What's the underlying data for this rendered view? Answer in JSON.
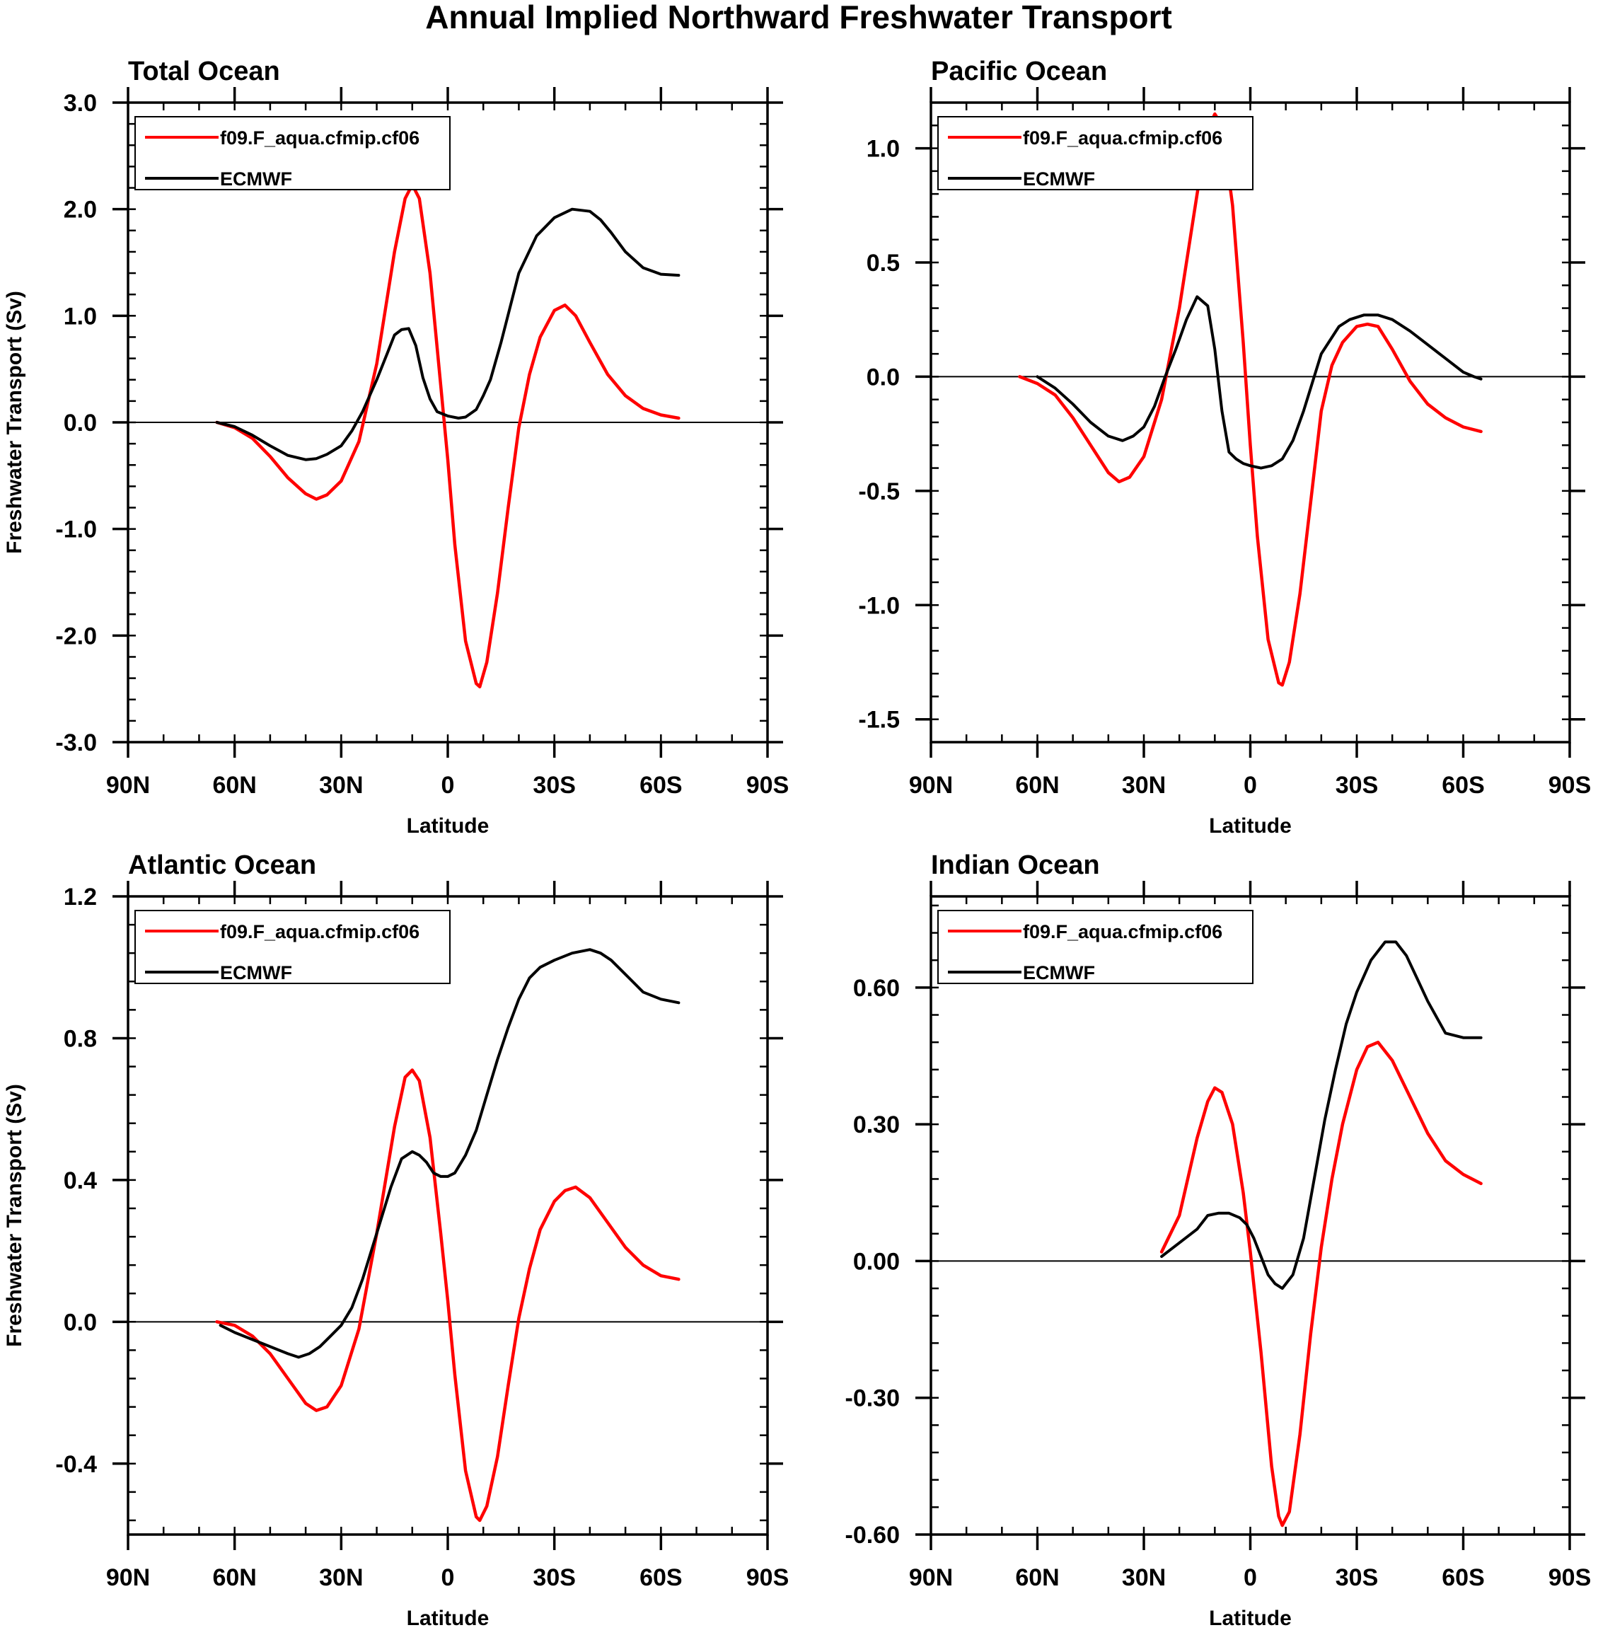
{
  "title": "Annual Implied Northward Freshwater Transport",
  "colors": {
    "model": "#ff0000",
    "obs": "#000000",
    "frame": "#000000",
    "background": "#ffffff"
  },
  "chart_data": [
    {
      "type": "line",
      "panel": "Total Ocean",
      "title": "Total Ocean",
      "xlabel": "Latitude",
      "ylabel": "Freshwater Transport (Sv)",
      "xlim": [
        -90,
        90
      ],
      "x_ticks": [
        -90,
        -60,
        -30,
        0,
        30,
        60,
        90
      ],
      "x_tick_labels": [
        "90N",
        "60N",
        "30N",
        "0",
        "30S",
        "60S",
        "90S"
      ],
      "ylim": [
        -3.0,
        3.0
      ],
      "y_ticks": [
        -3.0,
        -2.0,
        -1.0,
        0.0,
        1.0,
        2.0,
        3.0
      ],
      "y_tick_labels": [
        "-3.0",
        "-2.0",
        "-1.0",
        "0.0",
        "1.0",
        "2.0",
        "3.0"
      ],
      "y_minor_step": 0.2,
      "legend_position": "top-left",
      "series": [
        {
          "name": "f09.F_aqua.cfmip.cf06",
          "color_key": "model",
          "x": [
            -65,
            -60,
            -55,
            -50,
            -45,
            -40,
            -37,
            -34,
            -30,
            -25,
            -20,
            -15,
            -12,
            -10,
            -8,
            -5,
            -2,
            0,
            2,
            5,
            8,
            9,
            11,
            14,
            17,
            20,
            23,
            26,
            30,
            33,
            36,
            40,
            45,
            50,
            55,
            60,
            65
          ],
          "y": [
            0,
            -0.05,
            -0.15,
            -0.32,
            -0.52,
            -0.67,
            -0.72,
            -0.68,
            -0.55,
            -0.18,
            0.55,
            1.6,
            2.1,
            2.23,
            2.1,
            1.4,
            0.35,
            -0.35,
            -1.15,
            -2.05,
            -2.45,
            -2.48,
            -2.25,
            -1.6,
            -0.8,
            -0.05,
            0.45,
            0.8,
            1.05,
            1.1,
            1.0,
            0.75,
            0.45,
            0.25,
            0.13,
            0.07,
            0.04
          ]
        },
        {
          "name": "ECMWF",
          "color_key": "obs",
          "x": [
            -65,
            -60,
            -55,
            -50,
            -45,
            -40,
            -37,
            -34,
            -30,
            -27,
            -24,
            -20,
            -17,
            -15,
            -13,
            -11,
            -9,
            -7,
            -5,
            -3,
            0,
            3,
            5,
            8,
            10,
            12,
            15,
            20,
            25,
            30,
            35,
            40,
            43,
            46,
            50,
            55,
            60,
            65
          ],
          "y": [
            0,
            -0.04,
            -0.12,
            -0.22,
            -0.31,
            -0.35,
            -0.34,
            -0.3,
            -0.22,
            -0.08,
            0.1,
            0.4,
            0.65,
            0.82,
            0.87,
            0.88,
            0.72,
            0.42,
            0.22,
            0.1,
            0.06,
            0.04,
            0.05,
            0.12,
            0.25,
            0.4,
            0.75,
            1.4,
            1.75,
            1.92,
            2.0,
            1.98,
            1.9,
            1.78,
            1.6,
            1.45,
            1.39,
            1.38
          ]
        }
      ]
    },
    {
      "type": "line",
      "panel": "Pacific Ocean",
      "title": "Pacific Ocean",
      "xlabel": "Latitude",
      "ylabel": "",
      "xlim": [
        -90,
        90
      ],
      "x_ticks": [
        -90,
        -60,
        -30,
        0,
        30,
        60,
        90
      ],
      "x_tick_labels": [
        "90N",
        "60N",
        "30N",
        "0",
        "30S",
        "60S",
        "90S"
      ],
      "ylim": [
        -1.6,
        1.2
      ],
      "y_ticks": [
        -1.5,
        -1.0,
        -0.5,
        0.0,
        0.5,
        1.0
      ],
      "y_tick_labels": [
        "-1.5",
        "-1.0",
        "-0.5",
        "0.0",
        "0.5",
        "1.0"
      ],
      "y_minor_step": 0.1,
      "legend_position": "top-left",
      "series": [
        {
          "name": "f09.F_aqua.cfmip.cf06",
          "color_key": "model",
          "x": [
            -65,
            -60,
            -55,
            -50,
            -45,
            -40,
            -37,
            -34,
            -30,
            -25,
            -20,
            -15,
            -12,
            -10,
            -8,
            -5,
            -2,
            0,
            2,
            5,
            8,
            9,
            11,
            14,
            17,
            20,
            23,
            26,
            30,
            33,
            36,
            40,
            45,
            50,
            55,
            60,
            65
          ],
          "y": [
            0,
            -0.03,
            -0.08,
            -0.18,
            -0.3,
            -0.42,
            -0.46,
            -0.44,
            -0.35,
            -0.1,
            0.3,
            0.8,
            1.08,
            1.15,
            1.1,
            0.75,
            0.15,
            -0.3,
            -0.7,
            -1.15,
            -1.34,
            -1.35,
            -1.25,
            -0.95,
            -0.55,
            -0.15,
            0.05,
            0.15,
            0.22,
            0.23,
            0.22,
            0.12,
            -0.02,
            -0.12,
            -0.18,
            -0.22,
            -0.24
          ]
        },
        {
          "name": "ECMWF",
          "color_key": "obs",
          "x": [
            -60,
            -55,
            -50,
            -45,
            -40,
            -36,
            -33,
            -30,
            -27,
            -24,
            -21,
            -18,
            -15,
            -12,
            -10,
            -8,
            -6,
            -4,
            -2,
            0,
            3,
            6,
            9,
            12,
            15,
            20,
            25,
            28,
            32,
            36,
            40,
            45,
            50,
            55,
            60,
            63,
            65
          ],
          "y": [
            0,
            -0.05,
            -0.12,
            -0.2,
            -0.26,
            -0.28,
            -0.26,
            -0.22,
            -0.13,
            0.0,
            0.12,
            0.25,
            0.35,
            0.31,
            0.12,
            -0.15,
            -0.33,
            -0.36,
            -0.38,
            -0.39,
            -0.4,
            -0.39,
            -0.36,
            -0.28,
            -0.15,
            0.1,
            0.22,
            0.25,
            0.27,
            0.27,
            0.25,
            0.2,
            0.14,
            0.08,
            0.02,
            0.0,
            -0.01
          ]
        }
      ]
    },
    {
      "type": "line",
      "panel": "Atlantic Ocean",
      "title": "Atlantic Ocean",
      "xlabel": "Latitude",
      "ylabel": "Freshwater Transport (Sv)",
      "xlim": [
        -90,
        90
      ],
      "x_ticks": [
        -90,
        -60,
        -30,
        0,
        30,
        60,
        90
      ],
      "x_tick_labels": [
        "90N",
        "60N",
        "30N",
        "0",
        "30S",
        "60S",
        "90S"
      ],
      "ylim": [
        -0.6,
        1.2
      ],
      "y_ticks": [
        -0.4,
        0.0,
        0.4,
        0.8,
        1.2
      ],
      "y_tick_labels": [
        "-0.4",
        "0.0",
        "0.4",
        "0.8",
        "1.2"
      ],
      "y_minor_step": 0.08,
      "legend_position": "top-left",
      "series": [
        {
          "name": "f09.F_aqua.cfmip.cf06",
          "color_key": "model",
          "x": [
            -65,
            -60,
            -55,
            -50,
            -45,
            -40,
            -37,
            -34,
            -30,
            -25,
            -20,
            -15,
            -12,
            -10,
            -8,
            -5,
            -2,
            0,
            2,
            5,
            8,
            9,
            11,
            14,
            17,
            20,
            23,
            26,
            30,
            33,
            36,
            40,
            45,
            50,
            55,
            60,
            65
          ],
          "y": [
            0,
            -0.01,
            -0.04,
            -0.09,
            -0.16,
            -0.23,
            -0.25,
            -0.24,
            -0.18,
            -0.02,
            0.25,
            0.55,
            0.69,
            0.71,
            0.68,
            0.52,
            0.25,
            0.06,
            -0.15,
            -0.42,
            -0.55,
            -0.56,
            -0.52,
            -0.38,
            -0.18,
            0.01,
            0.15,
            0.26,
            0.34,
            0.37,
            0.38,
            0.35,
            0.28,
            0.21,
            0.16,
            0.13,
            0.12
          ]
        },
        {
          "name": "ECMWF",
          "color_key": "obs",
          "x": [
            -64,
            -60,
            -55,
            -50,
            -45,
            -42,
            -39,
            -36,
            -33,
            -30,
            -27,
            -24,
            -20,
            -16,
            -13,
            -10,
            -8,
            -6,
            -4,
            -2,
            0,
            2,
            5,
            8,
            11,
            14,
            17,
            20,
            23,
            26,
            30,
            35,
            40,
            43,
            46,
            50,
            55,
            60,
            65
          ],
          "y": [
            -0.01,
            -0.03,
            -0.05,
            -0.07,
            -0.09,
            -0.1,
            -0.09,
            -0.07,
            -0.04,
            -0.01,
            0.04,
            0.12,
            0.25,
            0.38,
            0.46,
            0.48,
            0.47,
            0.45,
            0.42,
            0.41,
            0.41,
            0.42,
            0.47,
            0.54,
            0.64,
            0.74,
            0.83,
            0.91,
            0.97,
            1.0,
            1.02,
            1.04,
            1.05,
            1.04,
            1.02,
            0.98,
            0.93,
            0.91,
            0.9
          ]
        }
      ]
    },
    {
      "type": "line",
      "panel": "Indian Ocean",
      "title": "Indian Ocean",
      "xlabel": "Latitude",
      "ylabel": "",
      "xlim": [
        -90,
        90
      ],
      "x_ticks": [
        -90,
        -60,
        -30,
        0,
        30,
        60,
        90
      ],
      "x_tick_labels": [
        "90N",
        "60N",
        "30N",
        "0",
        "30S",
        "60S",
        "90S"
      ],
      "ylim": [
        -0.6,
        0.8
      ],
      "y_ticks": [
        -0.6,
        -0.3,
        0.0,
        0.3,
        0.6
      ],
      "y_tick_labels": [
        "-0.60",
        "-0.30",
        "0.00",
        "0.30",
        "0.60"
      ],
      "y_minor_step": 0.06,
      "legend_position": "top-left",
      "series": [
        {
          "name": "f09.F_aqua.cfmip.cf06",
          "color_key": "model",
          "x": [
            -25,
            -20,
            -15,
            -12,
            -10,
            -8,
            -5,
            -2,
            0,
            3,
            6,
            8,
            9,
            11,
            14,
            17,
            20,
            23,
            26,
            30,
            33,
            36,
            40,
            45,
            50,
            55,
            60,
            65
          ],
          "y": [
            0.02,
            0.1,
            0.27,
            0.35,
            0.38,
            0.37,
            0.3,
            0.15,
            0.02,
            -0.2,
            -0.45,
            -0.56,
            -0.58,
            -0.55,
            -0.38,
            -0.16,
            0.03,
            0.18,
            0.3,
            0.42,
            0.47,
            0.48,
            0.44,
            0.36,
            0.28,
            0.22,
            0.19,
            0.17
          ]
        },
        {
          "name": "ECMWF",
          "color_key": "obs",
          "x": [
            -25,
            -20,
            -15,
            -12,
            -9,
            -6,
            -3,
            -1,
            1,
            3,
            5,
            7,
            9,
            12,
            15,
            18,
            21,
            24,
            27,
            30,
            34,
            38,
            41,
            44,
            47,
            50,
            55,
            60,
            65
          ],
          "y": [
            0.01,
            0.04,
            0.07,
            0.1,
            0.105,
            0.105,
            0.095,
            0.08,
            0.05,
            0.01,
            -0.03,
            -0.05,
            -0.06,
            -0.03,
            0.05,
            0.18,
            0.31,
            0.42,
            0.52,
            0.59,
            0.66,
            0.7,
            0.7,
            0.67,
            0.62,
            0.57,
            0.5,
            0.49,
            0.49
          ]
        }
      ]
    }
  ]
}
